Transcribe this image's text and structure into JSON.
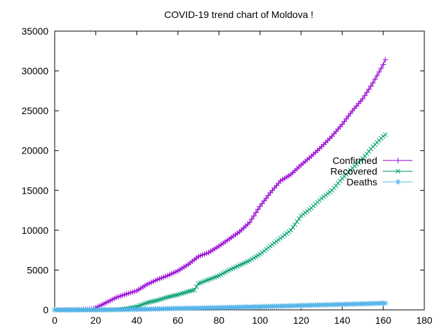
{
  "chart_data": {
    "type": "line",
    "title": "COVID-19 trend chart of Moldova !",
    "xlabel": "",
    "ylabel": "",
    "xlim": [
      0,
      180
    ],
    "ylim": [
      0,
      35000
    ],
    "x_ticks": [
      0,
      20,
      40,
      60,
      80,
      100,
      120,
      140,
      160,
      180
    ],
    "y_ticks": [
      0,
      5000,
      10000,
      15000,
      20000,
      25000,
      30000,
      35000
    ],
    "grid": false,
    "legend_position": "right",
    "series": [
      {
        "name": "Confirmed",
        "color": "#9400d3",
        "marker": "plus",
        "points": [
          [
            0,
            0
          ],
          [
            10,
            10
          ],
          [
            15,
            50
          ],
          [
            18,
            100
          ],
          [
            20,
            250
          ],
          [
            25,
            900
          ],
          [
            30,
            1550
          ],
          [
            35,
            2000
          ],
          [
            40,
            2400
          ],
          [
            45,
            3200
          ],
          [
            50,
            3800
          ],
          [
            55,
            4300
          ],
          [
            60,
            4900
          ],
          [
            65,
            5700
          ],
          [
            70,
            6700
          ],
          [
            75,
            7200
          ],
          [
            80,
            8000
          ],
          [
            85,
            8900
          ],
          [
            90,
            9800
          ],
          [
            95,
            11000
          ],
          [
            100,
            13000
          ],
          [
            105,
            14700
          ],
          [
            110,
            16200
          ],
          [
            115,
            17000
          ],
          [
            120,
            18200
          ],
          [
            125,
            19300
          ],
          [
            130,
            20500
          ],
          [
            135,
            21800
          ],
          [
            140,
            23300
          ],
          [
            145,
            25000
          ],
          [
            150,
            26500
          ],
          [
            155,
            28500
          ],
          [
            160,
            30800
          ],
          [
            161,
            31400
          ]
        ]
      },
      {
        "name": "Recovered",
        "color": "#009e73",
        "marker": "cross",
        "points": [
          [
            0,
            0
          ],
          [
            20,
            0
          ],
          [
            30,
            30
          ],
          [
            35,
            150
          ],
          [
            40,
            400
          ],
          [
            45,
            900
          ],
          [
            50,
            1200
          ],
          [
            55,
            1600
          ],
          [
            60,
            1900
          ],
          [
            65,
            2300
          ],
          [
            68,
            2500
          ],
          [
            70,
            3300
          ],
          [
            75,
            3800
          ],
          [
            80,
            4300
          ],
          [
            85,
            5000
          ],
          [
            90,
            5600
          ],
          [
            95,
            6200
          ],
          [
            100,
            7000
          ],
          [
            105,
            8000
          ],
          [
            110,
            9000
          ],
          [
            115,
            10000
          ],
          [
            120,
            11800
          ],
          [
            125,
            12800
          ],
          [
            130,
            14000
          ],
          [
            135,
            15000
          ],
          [
            140,
            16500
          ],
          [
            145,
            17800
          ],
          [
            150,
            19000
          ],
          [
            155,
            20500
          ],
          [
            160,
            21800
          ],
          [
            161,
            22000
          ]
        ]
      },
      {
        "name": "Deaths",
        "color": "#56b4e9",
        "marker": "star",
        "points": [
          [
            0,
            0
          ],
          [
            20,
            5
          ],
          [
            30,
            20
          ],
          [
            40,
            60
          ],
          [
            50,
            120
          ],
          [
            60,
            180
          ],
          [
            70,
            230
          ],
          [
            80,
            280
          ],
          [
            90,
            340
          ],
          [
            100,
            400
          ],
          [
            110,
            470
          ],
          [
            120,
            550
          ],
          [
            130,
            620
          ],
          [
            140,
            690
          ],
          [
            150,
            760
          ],
          [
            160,
            840
          ],
          [
            161,
            850
          ]
        ]
      }
    ]
  }
}
